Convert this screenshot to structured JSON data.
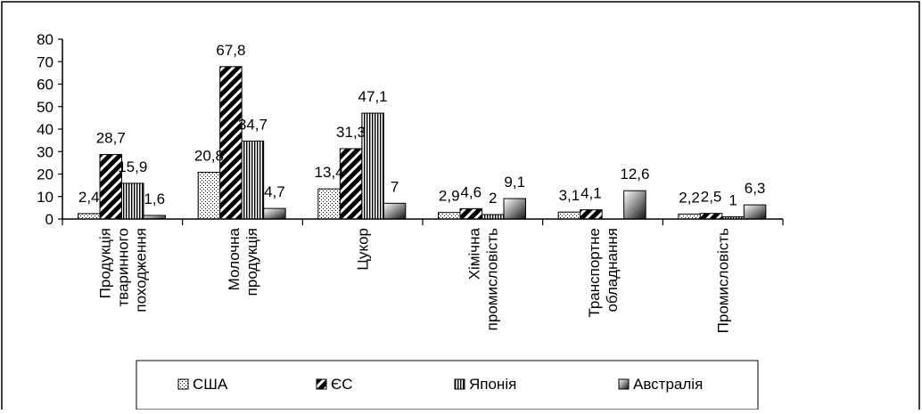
{
  "chart_data": {
    "type": "bar",
    "categories": [
      [
        "Продукція",
        "тваринного",
        "походження"
      ],
      [
        "Молочна",
        "продукція"
      ],
      [
        "Цукор"
      ],
      [
        "Хімічна",
        "промисловість"
      ],
      [
        "Транспортне",
        "обладнання"
      ],
      [
        "Промисловість"
      ]
    ],
    "series": [
      {
        "name": "США",
        "pattern": "dots",
        "values": [
          2.4,
          20.8,
          13.4,
          2.9,
          3.1,
          2.2
        ],
        "labels": [
          "2,4",
          "20,8",
          "13,4",
          "2,9",
          "3,1",
          "2,2"
        ]
      },
      {
        "name": "ЄС",
        "pattern": "diagonal",
        "values": [
          28.7,
          67.8,
          31.3,
          4.6,
          4.1,
          2.5
        ],
        "labels": [
          "28,7",
          "67,8",
          "31,3",
          "4,6",
          "4,1",
          "2,5"
        ]
      },
      {
        "name": "Японія",
        "pattern": "vertical",
        "values": [
          15.9,
          34.7,
          47.1,
          2,
          null,
          1
        ],
        "labels": [
          "15,9",
          "34,7",
          "47,1",
          "2",
          "",
          "1"
        ]
      },
      {
        "name": "Австралія",
        "pattern": "gradient",
        "values": [
          1.6,
          4.7,
          7,
          9.1,
          12.6,
          6.3
        ],
        "labels": [
          "1,6",
          "4,7",
          "7",
          "9,1",
          "12,6",
          "6,3"
        ]
      }
    ],
    "yticks": [
      "0",
      "10",
      "20",
      "30",
      "40",
      "50",
      "60",
      "70",
      "80"
    ],
    "ylim": [
      0,
      80
    ],
    "grid": false,
    "legend_position": "bottom",
    "title": "",
    "xlabel": "",
    "ylabel": ""
  }
}
